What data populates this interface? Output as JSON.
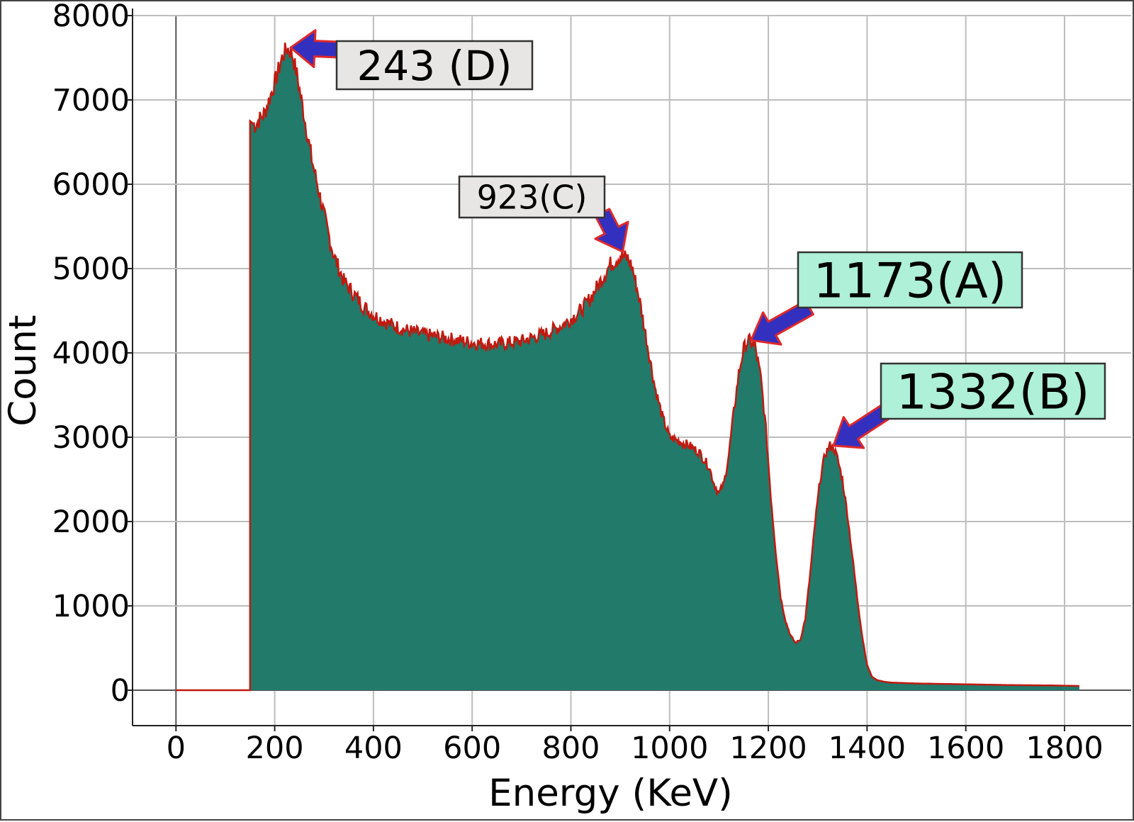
{
  "chart_data": {
    "type": "area",
    "xlabel": "Energy (KeV)",
    "ylabel": "Count",
    "xlim": [
      -88,
      1935
    ],
    "ylim": [
      -420,
      8000
    ],
    "x_ticks": [
      "0",
      "200",
      "400",
      "600",
      "800",
      "1000",
      "1200",
      "1400",
      "1600",
      "1800"
    ],
    "x_tick_values": [
      0,
      200,
      400,
      600,
      800,
      1000,
      1200,
      1400,
      1600,
      1800
    ],
    "y_ticks": [
      "0",
      "1000",
      "2000",
      "3000",
      "4000",
      "5000",
      "6000",
      "7000",
      "8000"
    ],
    "y_tick_values": [
      0,
      1000,
      2000,
      3000,
      4000,
      5000,
      6000,
      7000,
      8000
    ],
    "grid": true,
    "fill_color": "#217a6a",
    "line_color": "#c01a10",
    "series": [
      {
        "x": [
          0,
          150,
          150,
          160,
          180,
          200,
          215,
          225,
          235,
          245,
          260,
          275,
          290,
          305,
          320,
          340,
          360,
          380,
          400,
          430,
          460,
          500,
          550,
          600,
          650,
          700,
          750,
          780,
          800,
          820,
          840,
          860,
          880,
          900,
          915,
          925,
          940,
          955,
          970,
          985,
          1000,
          1020,
          1040,
          1060,
          1080,
          1090,
          1100,
          1110,
          1120,
          1130,
          1140,
          1150,
          1160,
          1173,
          1185,
          1195,
          1205,
          1215,
          1225,
          1235,
          1245,
          1255,
          1265,
          1275,
          1285,
          1295,
          1305,
          1315,
          1325,
          1332,
          1340,
          1350,
          1360,
          1370,
          1380,
          1390,
          1400,
          1410,
          1420,
          1435,
          1450,
          1500,
          1550,
          1600,
          1650,
          1700,
          1750,
          1790,
          1830
        ],
        "y": [
          0,
          0,
          6750,
          6700,
          6850,
          7200,
          7500,
          7620,
          7550,
          7300,
          6800,
          6300,
          5900,
          5500,
          5150,
          4850,
          4700,
          4550,
          4450,
          4350,
          4280,
          4220,
          4170,
          4120,
          4100,
          4140,
          4230,
          4320,
          4400,
          4500,
          4650,
          4850,
          5050,
          5150,
          5120,
          5000,
          4600,
          4100,
          3600,
          3250,
          3000,
          2950,
          2900,
          2820,
          2650,
          2450,
          2330,
          2450,
          2800,
          3300,
          3750,
          4050,
          4150,
          4080,
          3700,
          3100,
          2300,
          1650,
          1100,
          820,
          650,
          560,
          600,
          850,
          1400,
          2000,
          2500,
          2800,
          2900,
          2880,
          2750,
          2500,
          2100,
          1600,
          1100,
          650,
          300,
          160,
          120,
          100,
          90,
          80,
          75,
          70,
          65,
          60,
          58,
          55,
          50
        ]
      }
    ],
    "annotations": [
      {
        "text": "243 (D)",
        "points_to": [
          225,
          7620
        ],
        "box_color": "#e8e6e4",
        "arrow_color": "#3330c0"
      },
      {
        "text": "923(C)",
        "points_to": [
          905,
          5200
        ],
        "box_color": "#e8e6e4",
        "arrow_color": "#3330c0"
      },
      {
        "text": "1173(A)",
        "points_to": [
          1165,
          4150
        ],
        "box_color": "#aef0d8",
        "arrow_color": "#3330c0"
      },
      {
        "text": "1332(B)",
        "points_to": [
          1332,
          2900
        ],
        "box_color": "#aef0d8",
        "arrow_color": "#3330c0"
      }
    ]
  }
}
